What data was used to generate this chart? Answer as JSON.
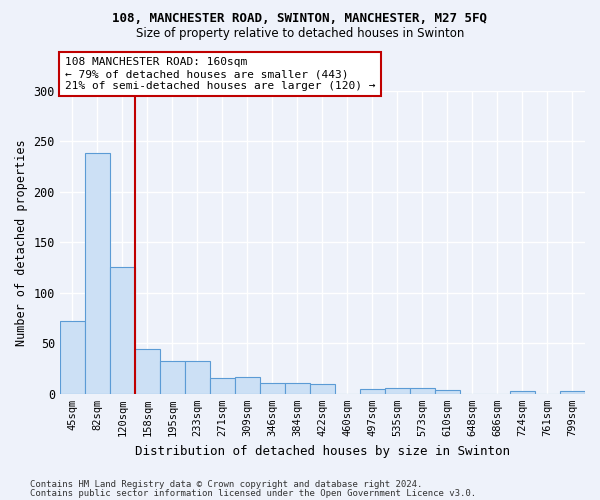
{
  "title1": "108, MANCHESTER ROAD, SWINTON, MANCHESTER, M27 5FQ",
  "title2": "Size of property relative to detached houses in Swinton",
  "xlabel": "Distribution of detached houses by size in Swinton",
  "ylabel": "Number of detached properties",
  "categories": [
    "45sqm",
    "82sqm",
    "120sqm",
    "158sqm",
    "195sqm",
    "233sqm",
    "271sqm",
    "309sqm",
    "346sqm",
    "384sqm",
    "422sqm",
    "460sqm",
    "497sqm",
    "535sqm",
    "573sqm",
    "610sqm",
    "648sqm",
    "686sqm",
    "724sqm",
    "761sqm",
    "799sqm"
  ],
  "values": [
    72,
    238,
    126,
    44,
    32,
    32,
    16,
    17,
    11,
    11,
    10,
    0,
    5,
    6,
    6,
    4,
    0,
    0,
    3,
    0,
    3
  ],
  "bar_color": "#cce0f5",
  "bar_edge_color": "#5b9bd5",
  "vline_x": 2.5,
  "vline_color": "#c00000",
  "annotation_line1": "108 MANCHESTER ROAD: 160sqm",
  "annotation_line2": "← 79% of detached houses are smaller (443)",
  "annotation_line3": "21% of semi-detached houses are larger (120) →",
  "annotation_box_color": "white",
  "annotation_box_edge": "#c00000",
  "footer1": "Contains HM Land Registry data © Crown copyright and database right 2024.",
  "footer2": "Contains public sector information licensed under the Open Government Licence v3.0.",
  "background_color": "#eef2fa",
  "ylim": [
    0,
    300
  ],
  "yticks": [
    0,
    50,
    100,
    150,
    200,
    250,
    300
  ]
}
